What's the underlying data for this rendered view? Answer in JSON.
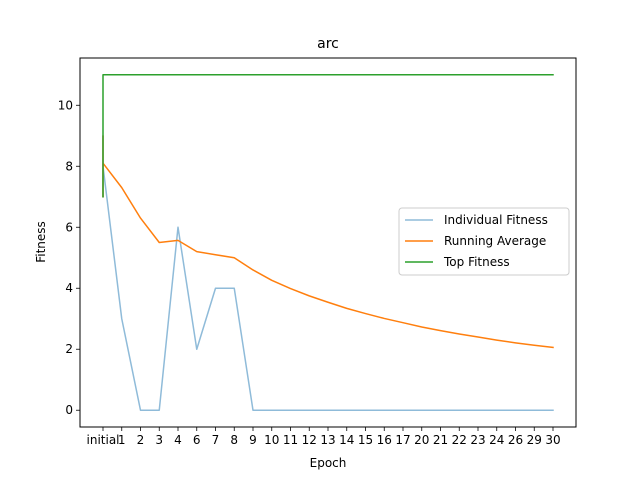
{
  "chart_data": {
    "type": "line",
    "title": "arc",
    "xlabel": "Epoch",
    "ylabel": "Fitness",
    "categories": [
      "initial",
      "1",
      "2",
      "3",
      "4",
      "6",
      "7",
      "8",
      "9",
      "10",
      "11",
      "12",
      "13",
      "14",
      "15",
      "16",
      "17",
      "20",
      "21",
      "22",
      "23",
      "24",
      "26",
      "29",
      "30"
    ],
    "ylim": [
      -0.55,
      11.55
    ],
    "yticks": [
      0,
      2,
      4,
      6,
      8,
      10
    ],
    "grid": false,
    "legend": "center-right",
    "series": [
      {
        "name": "Individual Fitness",
        "color": "#1f77b4",
        "alpha": 0.5,
        "x": [
          0,
          0,
          0,
          1,
          2,
          3,
          4,
          5,
          6,
          7,
          8,
          9,
          10,
          11,
          12,
          13,
          14,
          15,
          16,
          17,
          18,
          19,
          20,
          21,
          22,
          23,
          24
        ],
        "values": [
          7,
          9,
          8,
          3,
          0,
          0,
          6,
          2,
          4,
          4,
          0,
          0,
          0,
          0,
          0,
          0,
          0,
          0,
          0,
          0,
          0,
          0,
          0,
          0,
          0,
          0,
          0
        ]
      },
      {
        "name": "Running Average",
        "color": "#ff7f0e",
        "alpha": 1,
        "x": [
          0,
          0,
          0,
          1,
          2,
          3,
          4,
          5,
          6,
          7,
          8,
          9,
          10,
          11,
          12,
          13,
          14,
          15,
          16,
          17,
          18,
          19,
          20,
          21,
          22,
          23,
          24
        ],
        "values": [
          7.0,
          9.0,
          8.1,
          7.3,
          6.3,
          5.5,
          5.57,
          5.2,
          5.1,
          5.0,
          4.6,
          4.26,
          3.99,
          3.75,
          3.54,
          3.34,
          3.17,
          3.01,
          2.87,
          2.73,
          2.61,
          2.5,
          2.4,
          2.3,
          2.21,
          2.13,
          2.06
        ]
      },
      {
        "name": "Top Fitness",
        "color": "#2ca02c",
        "alpha": 1,
        "x": [
          0,
          0,
          0,
          1,
          24
        ],
        "values": [
          7,
          9,
          11,
          11,
          11
        ]
      }
    ]
  }
}
